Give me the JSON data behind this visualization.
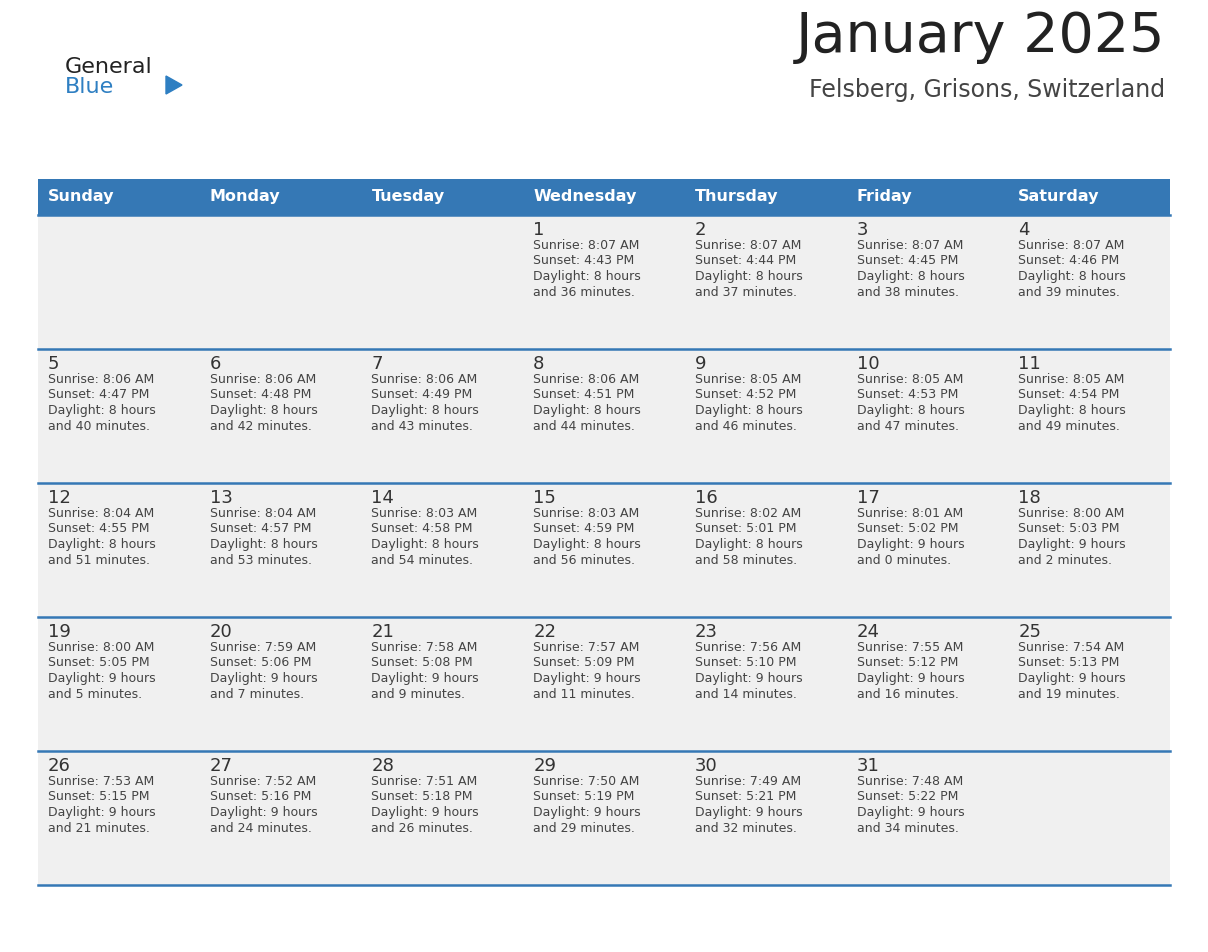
{
  "title": "January 2025",
  "subtitle": "Felsberg, Grisons, Switzerland",
  "days_of_week": [
    "Sunday",
    "Monday",
    "Tuesday",
    "Wednesday",
    "Thursday",
    "Friday",
    "Saturday"
  ],
  "header_bg": "#3578b5",
  "header_text": "#ffffff",
  "cell_bg": "#f0f0f0",
  "cell_bg_white": "#ffffff",
  "separator_color": "#3578b5",
  "title_color": "#222222",
  "subtitle_color": "#444444",
  "day_num_color": "#333333",
  "cell_text_color": "#444444",
  "logo_general_color": "#222222",
  "logo_blue_color": "#2e7fc2",
  "logo_triangle_color": "#2e7fc2",
  "calendar_data": [
    [
      {
        "day": "",
        "sunrise": "",
        "sunset": "",
        "dl_line1": "",
        "dl_line2": ""
      },
      {
        "day": "",
        "sunrise": "",
        "sunset": "",
        "dl_line1": "",
        "dl_line2": ""
      },
      {
        "day": "",
        "sunrise": "",
        "sunset": "",
        "dl_line1": "",
        "dl_line2": ""
      },
      {
        "day": "1",
        "sunrise": "8:07 AM",
        "sunset": "4:43 PM",
        "dl_line1": "Daylight: 8 hours",
        "dl_line2": "and 36 minutes."
      },
      {
        "day": "2",
        "sunrise": "8:07 AM",
        "sunset": "4:44 PM",
        "dl_line1": "Daylight: 8 hours",
        "dl_line2": "and 37 minutes."
      },
      {
        "day": "3",
        "sunrise": "8:07 AM",
        "sunset": "4:45 PM",
        "dl_line1": "Daylight: 8 hours",
        "dl_line2": "and 38 minutes."
      },
      {
        "day": "4",
        "sunrise": "8:07 AM",
        "sunset": "4:46 PM",
        "dl_line1": "Daylight: 8 hours",
        "dl_line2": "and 39 minutes."
      }
    ],
    [
      {
        "day": "5",
        "sunrise": "8:06 AM",
        "sunset": "4:47 PM",
        "dl_line1": "Daylight: 8 hours",
        "dl_line2": "and 40 minutes."
      },
      {
        "day": "6",
        "sunrise": "8:06 AM",
        "sunset": "4:48 PM",
        "dl_line1": "Daylight: 8 hours",
        "dl_line2": "and 42 minutes."
      },
      {
        "day": "7",
        "sunrise": "8:06 AM",
        "sunset": "4:49 PM",
        "dl_line1": "Daylight: 8 hours",
        "dl_line2": "and 43 minutes."
      },
      {
        "day": "8",
        "sunrise": "8:06 AM",
        "sunset": "4:51 PM",
        "dl_line1": "Daylight: 8 hours",
        "dl_line2": "and 44 minutes."
      },
      {
        "day": "9",
        "sunrise": "8:05 AM",
        "sunset": "4:52 PM",
        "dl_line1": "Daylight: 8 hours",
        "dl_line2": "and 46 minutes."
      },
      {
        "day": "10",
        "sunrise": "8:05 AM",
        "sunset": "4:53 PM",
        "dl_line1": "Daylight: 8 hours",
        "dl_line2": "and 47 minutes."
      },
      {
        "day": "11",
        "sunrise": "8:05 AM",
        "sunset": "4:54 PM",
        "dl_line1": "Daylight: 8 hours",
        "dl_line2": "and 49 minutes."
      }
    ],
    [
      {
        "day": "12",
        "sunrise": "8:04 AM",
        "sunset": "4:55 PM",
        "dl_line1": "Daylight: 8 hours",
        "dl_line2": "and 51 minutes."
      },
      {
        "day": "13",
        "sunrise": "8:04 AM",
        "sunset": "4:57 PM",
        "dl_line1": "Daylight: 8 hours",
        "dl_line2": "and 53 minutes."
      },
      {
        "day": "14",
        "sunrise": "8:03 AM",
        "sunset": "4:58 PM",
        "dl_line1": "Daylight: 8 hours",
        "dl_line2": "and 54 minutes."
      },
      {
        "day": "15",
        "sunrise": "8:03 AM",
        "sunset": "4:59 PM",
        "dl_line1": "Daylight: 8 hours",
        "dl_line2": "and 56 minutes."
      },
      {
        "day": "16",
        "sunrise": "8:02 AM",
        "sunset": "5:01 PM",
        "dl_line1": "Daylight: 8 hours",
        "dl_line2": "and 58 minutes."
      },
      {
        "day": "17",
        "sunrise": "8:01 AM",
        "sunset": "5:02 PM",
        "dl_line1": "Daylight: 9 hours",
        "dl_line2": "and 0 minutes."
      },
      {
        "day": "18",
        "sunrise": "8:00 AM",
        "sunset": "5:03 PM",
        "dl_line1": "Daylight: 9 hours",
        "dl_line2": "and 2 minutes."
      }
    ],
    [
      {
        "day": "19",
        "sunrise": "8:00 AM",
        "sunset": "5:05 PM",
        "dl_line1": "Daylight: 9 hours",
        "dl_line2": "and 5 minutes."
      },
      {
        "day": "20",
        "sunrise": "7:59 AM",
        "sunset": "5:06 PM",
        "dl_line1": "Daylight: 9 hours",
        "dl_line2": "and 7 minutes."
      },
      {
        "day": "21",
        "sunrise": "7:58 AM",
        "sunset": "5:08 PM",
        "dl_line1": "Daylight: 9 hours",
        "dl_line2": "and 9 minutes."
      },
      {
        "day": "22",
        "sunrise": "7:57 AM",
        "sunset": "5:09 PM",
        "dl_line1": "Daylight: 9 hours",
        "dl_line2": "and 11 minutes."
      },
      {
        "day": "23",
        "sunrise": "7:56 AM",
        "sunset": "5:10 PM",
        "dl_line1": "Daylight: 9 hours",
        "dl_line2": "and 14 minutes."
      },
      {
        "day": "24",
        "sunrise": "7:55 AM",
        "sunset": "5:12 PM",
        "dl_line1": "Daylight: 9 hours",
        "dl_line2": "and 16 minutes."
      },
      {
        "day": "25",
        "sunrise": "7:54 AM",
        "sunset": "5:13 PM",
        "dl_line1": "Daylight: 9 hours",
        "dl_line2": "and 19 minutes."
      }
    ],
    [
      {
        "day": "26",
        "sunrise": "7:53 AM",
        "sunset": "5:15 PM",
        "dl_line1": "Daylight: 9 hours",
        "dl_line2": "and 21 minutes."
      },
      {
        "day": "27",
        "sunrise": "7:52 AM",
        "sunset": "5:16 PM",
        "dl_line1": "Daylight: 9 hours",
        "dl_line2": "and 24 minutes."
      },
      {
        "day": "28",
        "sunrise": "7:51 AM",
        "sunset": "5:18 PM",
        "dl_line1": "Daylight: 9 hours",
        "dl_line2": "and 26 minutes."
      },
      {
        "day": "29",
        "sunrise": "7:50 AM",
        "sunset": "5:19 PM",
        "dl_line1": "Daylight: 9 hours",
        "dl_line2": "and 29 minutes."
      },
      {
        "day": "30",
        "sunrise": "7:49 AM",
        "sunset": "5:21 PM",
        "dl_line1": "Daylight: 9 hours",
        "dl_line2": "and 32 minutes."
      },
      {
        "day": "31",
        "sunrise": "7:48 AM",
        "sunset": "5:22 PM",
        "dl_line1": "Daylight: 9 hours",
        "dl_line2": "and 34 minutes."
      },
      {
        "day": "",
        "sunrise": "",
        "sunset": "",
        "dl_line1": "",
        "dl_line2": ""
      }
    ]
  ]
}
